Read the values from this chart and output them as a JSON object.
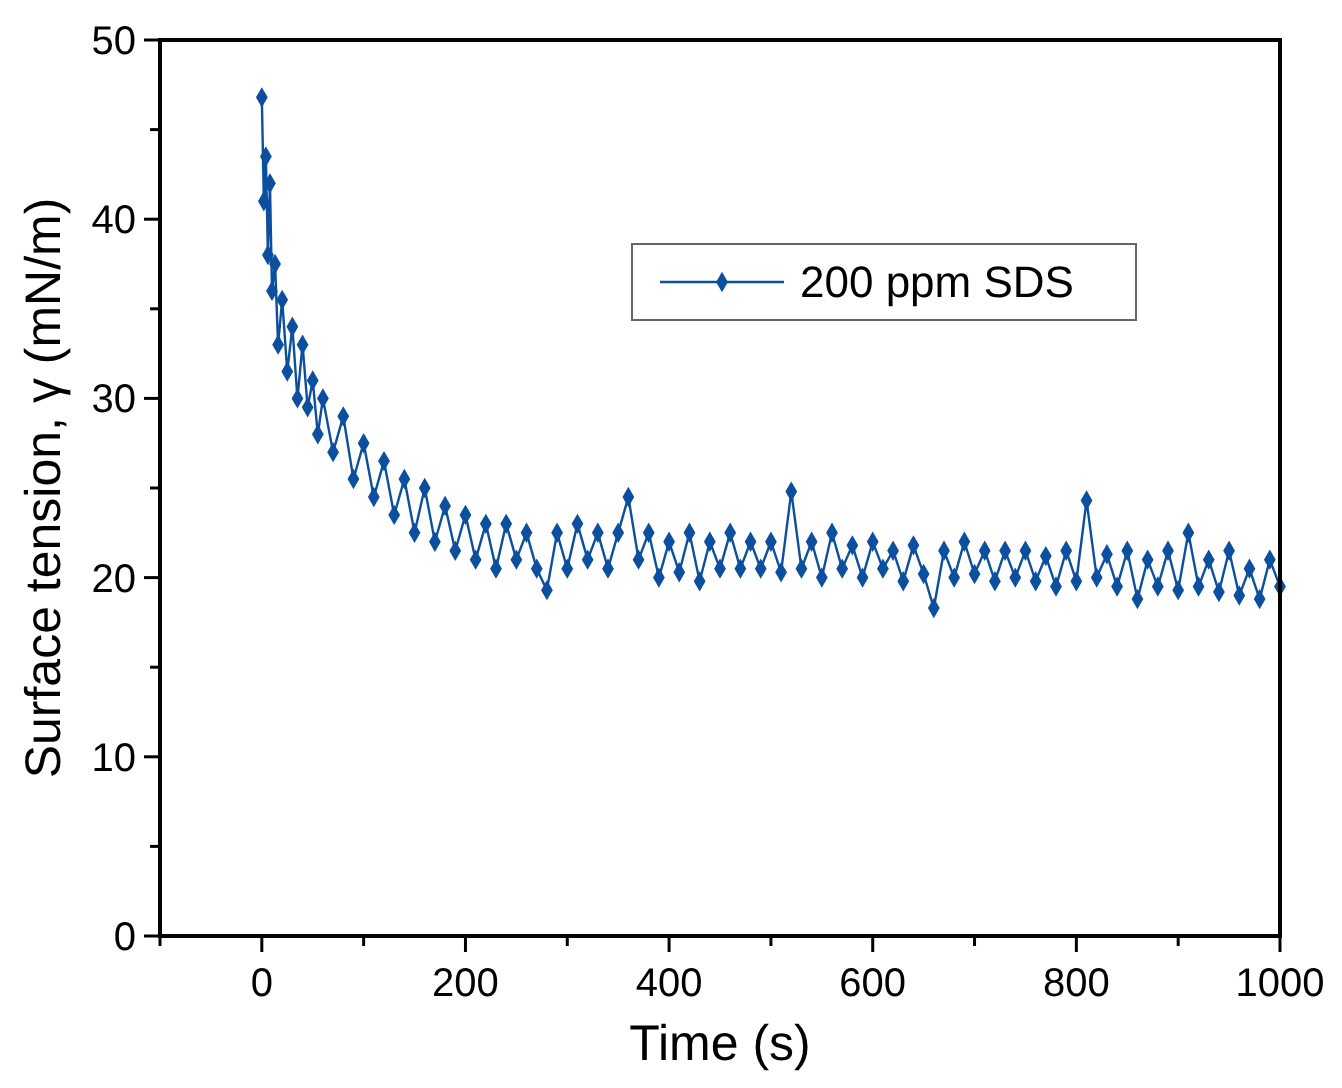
{
  "chart_data": {
    "type": "line",
    "xlabel": "Time (s)",
    "ylabel": "Surface tension, γ (mN/m)",
    "xlim": [
      -100,
      1000
    ],
    "ylim": [
      0,
      50
    ],
    "xticks": [
      {
        "value": -100,
        "label": null
      },
      0,
      {
        "value": 100,
        "label": null
      },
      200,
      {
        "value": 300,
        "label": null
      },
      400,
      {
        "value": 500,
        "label": null
      },
      600,
      {
        "value": 700,
        "label": null
      },
      800,
      {
        "value": 900,
        "label": null
      },
      1000
    ],
    "yticks": [
      0,
      {
        "value": 5,
        "label": null
      },
      10,
      {
        "value": 15,
        "label": null
      },
      20,
      {
        "value": 25,
        "label": null
      },
      30,
      {
        "value": 35,
        "label": null
      },
      40,
      {
        "value": 45,
        "label": null
      },
      50
    ],
    "marker": "diamond",
    "line_style": "solid",
    "legend": "top right",
    "grid": false,
    "series": [
      {
        "name": "200 ppm SDS",
        "color": "#0b4f9e",
        "x": [
          0,
          2,
          4,
          6,
          8,
          10,
          13,
          16,
          20,
          25,
          30,
          35,
          40,
          45,
          50,
          55,
          60,
          70,
          80,
          90,
          100,
          110,
          120,
          130,
          140,
          150,
          160,
          170,
          180,
          190,
          200,
          210,
          220,
          230,
          240,
          250,
          260,
          270,
          280,
          290,
          300,
          310,
          320,
          330,
          340,
          350,
          360,
          370,
          380,
          390,
          400,
          410,
          420,
          430,
          440,
          450,
          460,
          470,
          480,
          490,
          500,
          510,
          520,
          530,
          540,
          550,
          560,
          570,
          580,
          590,
          600,
          610,
          620,
          630,
          640,
          650,
          660,
          670,
          680,
          690,
          700,
          710,
          720,
          730,
          740,
          750,
          760,
          770,
          780,
          790,
          800,
          810,
          820,
          830,
          840,
          850,
          860,
          870,
          880,
          890,
          900,
          910,
          920,
          930,
          940,
          950,
          960,
          970,
          980,
          990,
          1000
        ],
        "values": [
          46.8,
          41,
          43.5,
          38,
          42,
          36,
          37.5,
          33,
          35.5,
          31.5,
          34,
          30,
          33,
          29.5,
          31,
          28,
          30,
          27,
          29,
          25.5,
          27.5,
          24.5,
          26.5,
          23.5,
          25.5,
          22.5,
          25,
          22,
          24,
          21.5,
          23.5,
          21,
          23,
          20.5,
          23,
          21,
          22.5,
          20.5,
          19.3,
          22.5,
          20.5,
          23,
          21,
          22.5,
          20.5,
          22.5,
          24.5,
          21,
          22.5,
          20,
          22,
          20.3,
          22.5,
          19.8,
          22,
          20.5,
          22.5,
          20.5,
          22,
          20.5,
          22,
          20.3,
          24.8,
          20.5,
          22,
          20,
          22.5,
          20.5,
          21.8,
          20,
          22,
          20.5,
          21.5,
          19.8,
          21.8,
          20.2,
          18.3,
          21.5,
          20,
          22,
          20.2,
          21.5,
          19.8,
          21.5,
          20,
          21.5,
          19.8,
          21.2,
          19.5,
          21.5,
          19.8,
          24.3,
          20,
          21.3,
          19.5,
          21.5,
          18.8,
          21,
          19.5,
          21.5,
          19.3,
          22.5,
          19.5,
          21,
          19.2,
          21.5,
          19,
          20.5,
          18.8,
          21,
          19.5
        ]
      }
    ]
  }
}
